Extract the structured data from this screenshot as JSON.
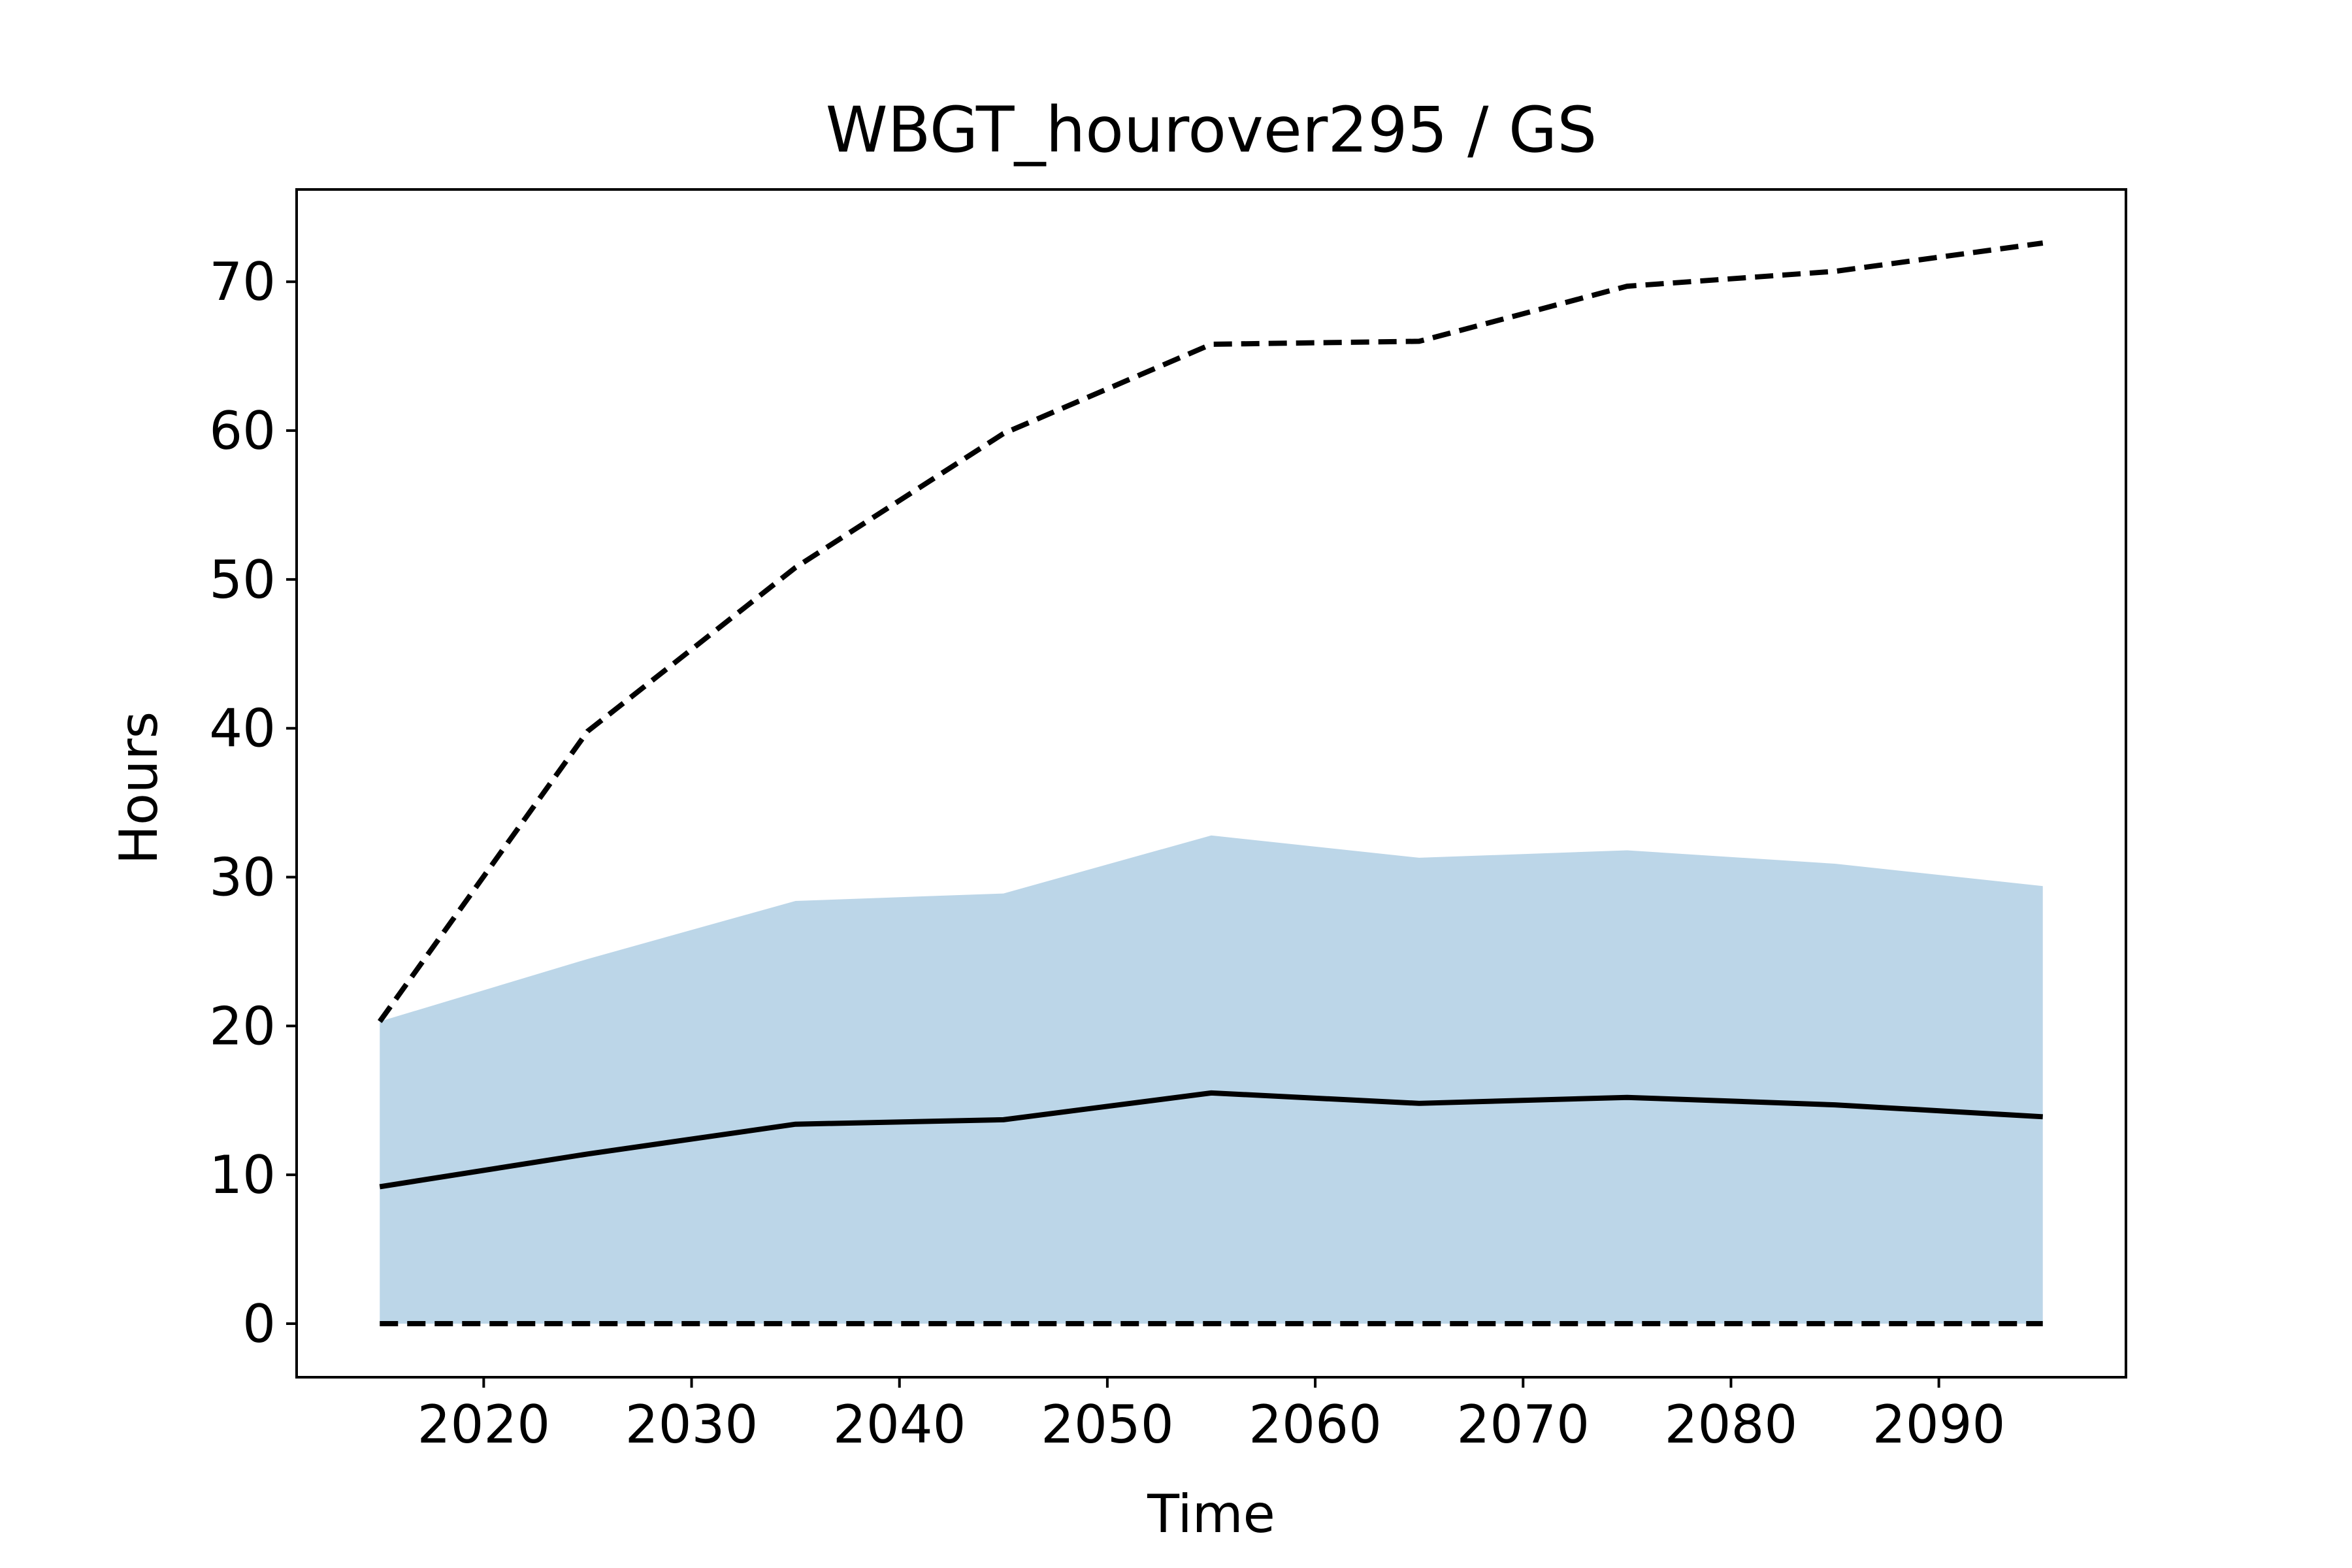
{
  "chart_data": {
    "type": "area",
    "title": "WBGT_hourover295 / GS",
    "xlabel": "Time",
    "ylabel": "Hours",
    "xlim": [
      2011,
      2099
    ],
    "ylim": [
      -3.6,
      76.2
    ],
    "xticks": [
      2020,
      2030,
      2040,
      2050,
      2060,
      2070,
      2080,
      2090
    ],
    "yticks": [
      0,
      10,
      20,
      30,
      40,
      50,
      60,
      70
    ],
    "grid": false,
    "legend": "none",
    "x": [
      2015,
      2025,
      2035,
      2045,
      2055,
      2065,
      2075,
      2085,
      2095
    ],
    "band": {
      "lower": [
        0,
        0,
        0,
        0,
        0,
        0,
        0,
        0,
        0
      ],
      "upper": [
        20.3,
        24.5,
        28.4,
        28.9,
        32.8,
        31.3,
        31.8,
        30.9,
        29.4
      ],
      "color": "#bcd6e8"
    },
    "series": [
      {
        "values": [
          9.2,
          11.4,
          13.4,
          13.7,
          15.5,
          14.8,
          15.2,
          14.7,
          13.9
        ],
        "style": "solid",
        "color": "#000000"
      },
      {
        "values": [
          20.3,
          39.8,
          50.8,
          59.8,
          65.8,
          66.0,
          69.7,
          70.7,
          72.6
        ],
        "style": "dashed",
        "color": "#000000"
      },
      {
        "values": [
          0,
          0,
          0,
          0,
          0,
          0,
          0,
          0,
          0
        ],
        "style": "dashed",
        "color": "#000000"
      }
    ]
  }
}
